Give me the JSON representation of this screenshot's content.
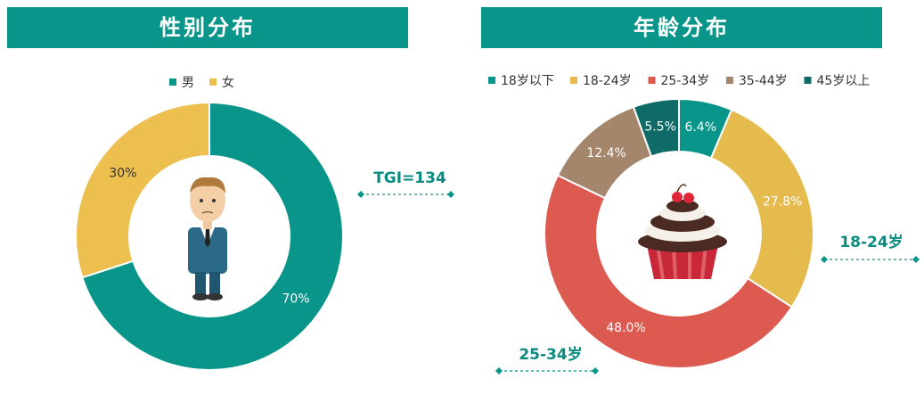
{
  "chart_data": [
    {
      "type": "donut",
      "title": "性别分布",
      "categories": [
        "男",
        "女"
      ],
      "values": [
        70,
        30
      ],
      "value_labels": [
        "70%",
        "30%"
      ],
      "colors": [
        "#0a958a",
        "#ecbf4f"
      ],
      "annotations": [
        "TGI=134"
      ]
    },
    {
      "type": "donut",
      "title": "年龄分布",
      "categories": [
        "18岁以下",
        "18-24岁",
        "25-34岁",
        "35-44岁",
        "45岁以上"
      ],
      "values": [
        6.4,
        27.8,
        48.0,
        12.4,
        5.5
      ],
      "value_labels": [
        "6.4%",
        "27.8%",
        "48.0%",
        "12.4%",
        "5.5%"
      ],
      "colors": [
        "#0a958a",
        "#e6bb4e",
        "#dc5a4f",
        "#a3866b",
        "#0e6b68"
      ],
      "annotations": [
        "18-24岁",
        "25-34岁"
      ]
    }
  ]
}
